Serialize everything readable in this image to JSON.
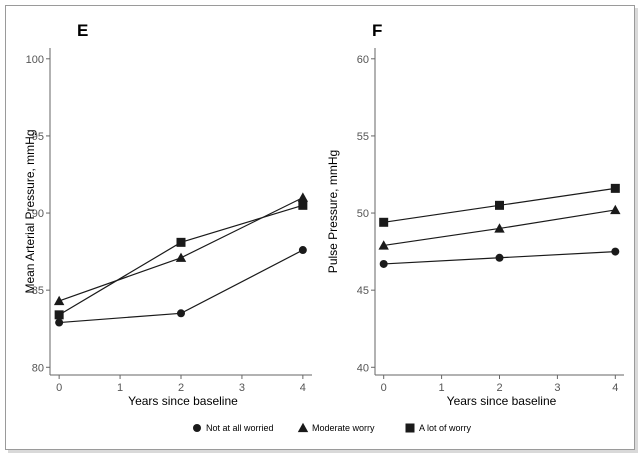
{
  "legend": {
    "placement": "bottom",
    "items": [
      {
        "label": "Not at all worried",
        "marker": "circle"
      },
      {
        "label": "Moderate worry",
        "marker": "triangle"
      },
      {
        "label": "A lot of worry",
        "marker": "square"
      }
    ]
  },
  "colors": {
    "line": "#1a1a1a",
    "axis": "#666666",
    "tick_text": "#555555",
    "frame": "#9a9a9a"
  },
  "chart_data": [
    {
      "panel": "E",
      "type": "line",
      "xlabel": "Years since baseline",
      "ylabel": "Mean Arterial Pressure, mmHg",
      "xlim": [
        -0.15,
        4.15
      ],
      "ylim": [
        79.5,
        100.7
      ],
      "xticks": [
        0,
        1,
        2,
        3,
        4
      ],
      "xtick_labels": [
        "0",
        "1",
        "2",
        "3",
        "4"
      ],
      "yticks": [
        80,
        85,
        90,
        95,
        100
      ],
      "ytick_labels": [
        "80",
        "85",
        "90",
        "95",
        "100"
      ],
      "grid": false,
      "x": [
        0,
        2,
        4
      ],
      "series": [
        {
          "name": "Not at all worried",
          "marker": "circle",
          "values": [
            82.9,
            83.5,
            87.6
          ]
        },
        {
          "name": "Moderate worry",
          "marker": "triangle",
          "values": [
            84.3,
            87.1,
            91.0
          ]
        },
        {
          "name": "A lot of worry",
          "marker": "square",
          "values": [
            83.4,
            88.1,
            90.5
          ]
        }
      ]
    },
    {
      "panel": "F",
      "type": "line",
      "xlabel": "Years since baseline",
      "ylabel": "Pulse Pressure, mmHg",
      "xlim": [
        -0.15,
        4.15
      ],
      "ylim": [
        39.5,
        60.7
      ],
      "xticks": [
        0,
        1,
        2,
        3,
        4
      ],
      "xtick_labels": [
        "0",
        "1",
        "2",
        "3",
        "4"
      ],
      "yticks": [
        40,
        45,
        50,
        55,
        60
      ],
      "ytick_labels": [
        "40",
        "45",
        "50",
        "55",
        "60"
      ],
      "grid": false,
      "x": [
        0,
        2,
        4
      ],
      "series": [
        {
          "name": "Not at all worried",
          "marker": "circle",
          "values": [
            46.7,
            47.1,
            47.5
          ]
        },
        {
          "name": "Moderate worry",
          "marker": "triangle",
          "values": [
            47.9,
            49.0,
            50.2
          ]
        },
        {
          "name": "A lot of worry",
          "marker": "square",
          "values": [
            49.4,
            50.5,
            51.6
          ]
        }
      ]
    }
  ]
}
